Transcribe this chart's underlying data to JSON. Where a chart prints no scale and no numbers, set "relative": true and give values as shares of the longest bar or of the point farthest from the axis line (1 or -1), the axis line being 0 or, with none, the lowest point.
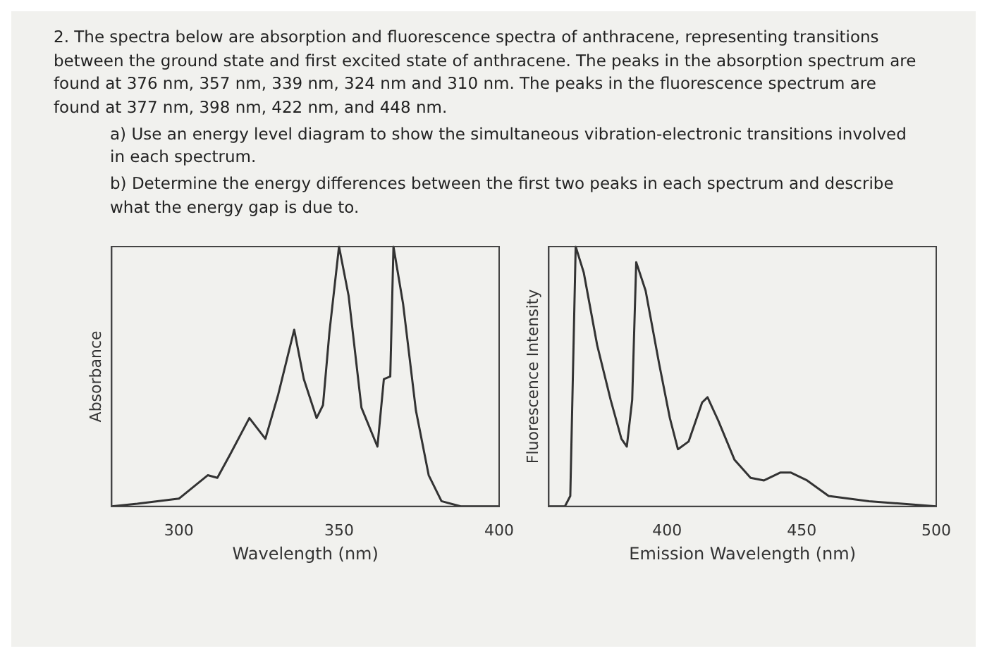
{
  "chart_data": [
    {
      "type": "line",
      "annotations": [
        "2. The spectra below are absorption and fluorescence spectra of anthracene, representing transitions between the ground state and first excited state of anthracene. The peaks in the absorption spectrum are found at 376 nm, 357 nm, 339 nm, 324 nm and 310 nm. The peaks in the fluorescence spectrum are found at 377 nm, 398 nm, 422 nm, and 448 nm.",
        "a) Use an energy level diagram to show the simultaneous vibration-electronic transitions involved in each spectrum.",
        "b) Determine the energy differences between the first two peaks in each spectrum and describe what the energy gap is due to."
      ],
      "xlabel": "Wavelength (nm)",
      "ylabel": "Absorbance",
      "relative": true,
      "xlim": [
        279,
        400
      ],
      "xticks": [
        300,
        350,
        400
      ],
      "grid": false,
      "legend": false,
      "marker": "none",
      "series": [
        {
          "color": "#333333",
          "x": [
            279,
            287,
            300,
            305,
            309,
            312,
            316,
            322,
            327,
            331,
            336,
            339,
            343,
            345,
            347,
            350,
            353,
            357,
            362,
            364,
            366,
            367,
            370,
            374,
            378,
            382,
            388,
            400
          ],
          "values": [
            0,
            0.01,
            0.03,
            0.08,
            0.12,
            0.11,
            0.2,
            0.34,
            0.26,
            0.43,
            0.68,
            0.49,
            0.34,
            0.39,
            0.67,
            1,
            0.81,
            0.38,
            0.23,
            0.49,
            0.5,
            1,
            0.78,
            0.37,
            0.12,
            0.02,
            0,
            0
          ]
        }
      ]
    },
    {
      "type": "line",
      "xlabel": "Emission Wavelength (nm)",
      "ylabel": "Fluorescence Intensity",
      "relative": true,
      "xlim": [
        356,
        500
      ],
      "xticks": [
        400,
        450,
        500
      ],
      "grid": false,
      "legend": false,
      "marker": "none",
      "series": [
        {
          "color": "#333333",
          "x": [
            356,
            362,
            364,
            365,
            366,
            369,
            374,
            379,
            383,
            385,
            387,
            388.5,
            392,
            397,
            401,
            404,
            408,
            413,
            415,
            419,
            425,
            431,
            436,
            442,
            446,
            452,
            460,
            475,
            500
          ],
          "values": [
            0,
            0,
            0.04,
            0.52,
            1,
            0.9,
            0.62,
            0.41,
            0.26,
            0.23,
            0.41,
            0.94,
            0.83,
            0.55,
            0.34,
            0.22,
            0.25,
            0.4,
            0.42,
            0.33,
            0.18,
            0.11,
            0.1,
            0.13,
            0.13,
            0.1,
            0.04,
            0.02,
            0
          ]
        }
      ]
    }
  ]
}
